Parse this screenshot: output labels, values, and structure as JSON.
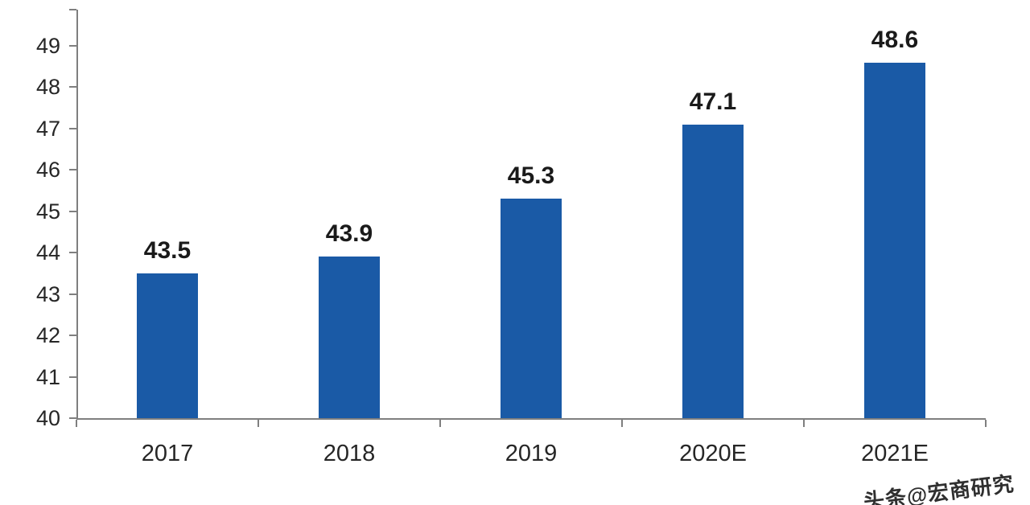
{
  "chart_data": {
    "type": "bar",
    "categories": [
      "2017",
      "2018",
      "2019",
      "2020E",
      "2021E"
    ],
    "values": [
      43.5,
      43.9,
      45.3,
      47.1,
      48.6
    ],
    "title": "",
    "xlabel": "",
    "ylabel": "",
    "ylim": [
      40,
      49
    ],
    "y_ticks": [
      40,
      41,
      42,
      43,
      44,
      45,
      46,
      47,
      48,
      49
    ],
    "grid": false,
    "legend": "none",
    "bar_color": "#1a5aa6",
    "axis_color": "#7f7f7f",
    "label_color": "#1a1a1a"
  },
  "watermark": {
    "text": "头条@宏商研究"
  }
}
